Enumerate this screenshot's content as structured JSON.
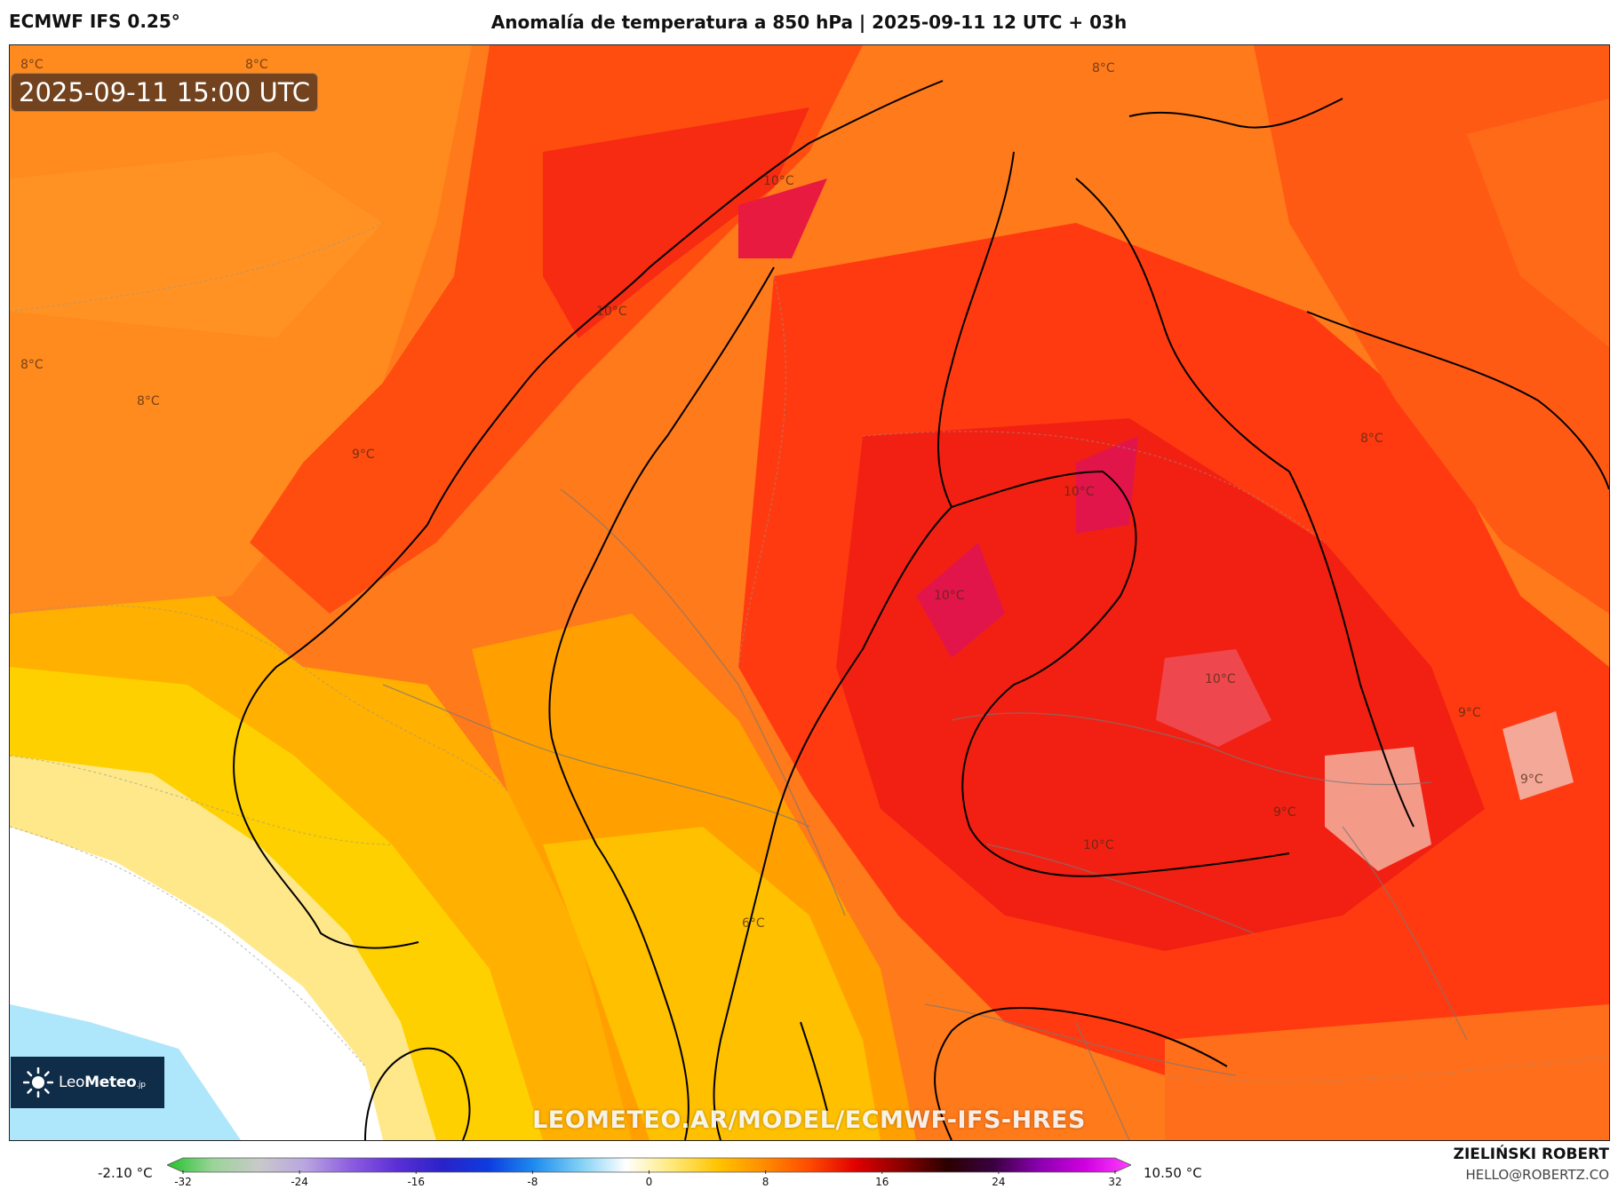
{
  "header": {
    "model": "ECMWF IFS 0.25°",
    "title": "Anomalía de temperatura a 850 hPa | 2025-09-11 12 UTC + 03h"
  },
  "map": {
    "valid_time": "2025-09-11 15:00 UTC",
    "watermark": "LEOMETEO.AR/MODEL/ECMWF-IFS-HRES",
    "contour_labels": [
      "8°C",
      "8°C",
      "8°C",
      "8°C",
      "8°C",
      "9°C",
      "10°C",
      "10°C",
      "10°C",
      "10°C",
      "10°C",
      "10°C",
      "8°C",
      "9°C",
      "9°C",
      "9°C",
      "6°C"
    ]
  },
  "logo": {
    "name_light": "Leo",
    "name_bold": "Meteo",
    "suffix": ".jp"
  },
  "colorbar": {
    "min_label": "-2.10 °C",
    "max_label": "10.50 °C",
    "ticks": [
      "-32",
      "-24",
      "-16",
      "-8",
      "0",
      "8",
      "16",
      "24",
      "32"
    ],
    "range": [
      -32,
      32
    ],
    "colors": [
      "#22c22a",
      "#9ad49a",
      "#c9c9c9",
      "#b9a6e0",
      "#8d5de0",
      "#5b2fd6",
      "#2a22c8",
      "#0d3ce0",
      "#1e8cf0",
      "#7fd0f5",
      "#ffffff",
      "#ffe97a",
      "#ffc400",
      "#ff8c00",
      "#ff4a00",
      "#e00000",
      "#8a0000",
      "#2a0000",
      "#3a0040",
      "#8a00b0",
      "#d000e0",
      "#ff40ff"
    ]
  },
  "credit": {
    "author": "ZIELIŃSKI ROBERT",
    "email": "HELLO@ROBERTZ.CO"
  }
}
